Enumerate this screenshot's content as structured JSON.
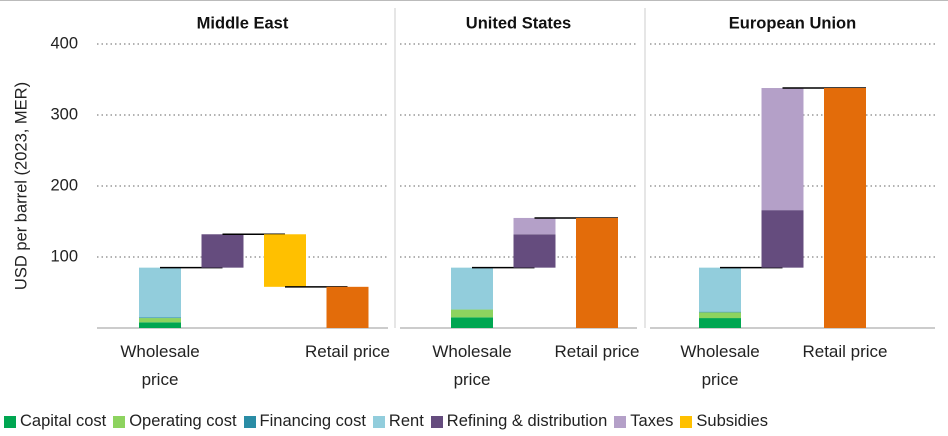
{
  "chart_data": [
    {
      "type": "waterfall",
      "title": "Middle East",
      "y_label": "USD per barrel (2023, MER)",
      "categories": [
        "Wholesale price",
        null,
        null,
        "Retail price"
      ],
      "series": [
        {
          "name": "Capital cost",
          "color": "#00a651",
          "values": [
            8,
            null,
            null,
            null
          ]
        },
        {
          "name": "Operating cost",
          "color": "#8dd35f",
          "values": [
            6,
            null,
            null,
            null
          ]
        },
        {
          "name": "Financing cost",
          "color": "#2a8ca5",
          "values": [
            1,
            null,
            null,
            null
          ]
        },
        {
          "name": "Rent",
          "color": "#92cddc",
          "values": [
            70,
            null,
            null,
            null
          ]
        },
        {
          "name": "Refining & distribution",
          "color": "#654c7e",
          "values": [
            null,
            47,
            null,
            null
          ]
        },
        {
          "name": "Taxes",
          "color": "#b4a0c8",
          "values": [
            null,
            null,
            null,
            null
          ]
        },
        {
          "name": "Subsidies",
          "color": "#ffc000",
          "values": [
            null,
            null,
            -74,
            null
          ]
        }
      ],
      "totals": [
        null,
        null,
        null,
        58
      ],
      "total_color": "#e36c0a",
      "ylim": [
        0,
        400
      ],
      "yticks": [
        100,
        200,
        300,
        400
      ],
      "grid": true
    },
    {
      "type": "waterfall",
      "title": "United States",
      "categories": [
        "Wholesale price",
        null,
        "Retail price"
      ],
      "series": [
        {
          "name": "Capital cost",
          "color": "#00a651",
          "values": [
            15,
            null,
            null
          ]
        },
        {
          "name": "Operating cost",
          "color": "#8dd35f",
          "values": [
            11,
            null,
            null
          ]
        },
        {
          "name": "Financing cost",
          "color": "#2a8ca5",
          "values": [
            0,
            null,
            null
          ]
        },
        {
          "name": "Rent",
          "color": "#92cddc",
          "values": [
            59,
            null,
            null
          ]
        },
        {
          "name": "Refining & distribution",
          "color": "#654c7e",
          "values": [
            null,
            47,
            null
          ]
        },
        {
          "name": "Taxes",
          "color": "#b4a0c8",
          "values": [
            null,
            23,
            null
          ]
        },
        {
          "name": "Subsidies",
          "color": "#ffc000",
          "values": [
            null,
            null,
            null
          ]
        }
      ],
      "totals": [
        null,
        null,
        155
      ],
      "total_color": "#e36c0a",
      "ylim": [
        0,
        400
      ],
      "yticks": [
        100,
        200,
        300,
        400
      ],
      "grid": true
    },
    {
      "type": "waterfall",
      "title": "European Union",
      "categories": [
        "Wholesale price",
        null,
        "Retail price"
      ],
      "series": [
        {
          "name": "Capital cost",
          "color": "#00a651",
          "values": [
            14,
            null,
            null
          ]
        },
        {
          "name": "Operating cost",
          "color": "#8dd35f",
          "values": [
            8,
            null,
            null
          ]
        },
        {
          "name": "Financing cost",
          "color": "#2a8ca5",
          "values": [
            1,
            null,
            null
          ]
        },
        {
          "name": "Rent",
          "color": "#92cddc",
          "values": [
            62,
            null,
            null
          ]
        },
        {
          "name": "Refining & distribution",
          "color": "#654c7e",
          "values": [
            null,
            81,
            null
          ]
        },
        {
          "name": "Taxes",
          "color": "#b4a0c8",
          "values": [
            null,
            172,
            null
          ]
        },
        {
          "name": "Subsidies",
          "color": "#ffc000",
          "values": [
            null,
            null,
            null
          ]
        }
      ],
      "totals": [
        null,
        null,
        338
      ],
      "total_color": "#e36c0a",
      "ylim": [
        0,
        400
      ],
      "yticks": [
        100,
        200,
        300,
        400
      ],
      "grid": true
    }
  ]
}
